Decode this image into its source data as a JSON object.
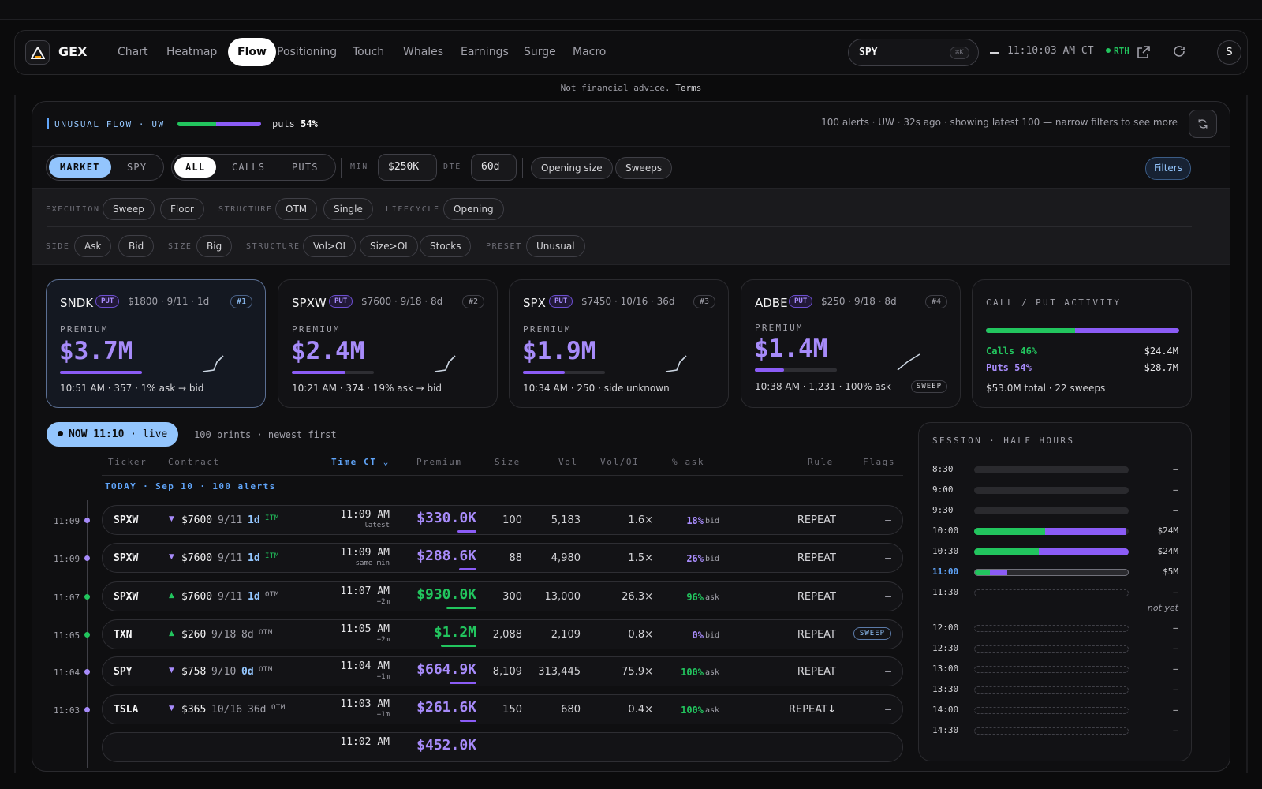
{
  "nav": {
    "brand": "GEX",
    "tabs": [
      "Chart",
      "Heatmap",
      "Flow",
      "Positioning",
      "Touch",
      "Whales",
      "Earnings",
      "Surge",
      "Macro"
    ],
    "active_tab": "Flow",
    "search_value": "SPY",
    "search_shortcut": "⌘K",
    "clock": "11:10:03 AM CT",
    "session_badge": "RTH",
    "avatar": "S"
  },
  "disclaimer": {
    "text": "Not financial advice.",
    "link": "Terms"
  },
  "panel": {
    "title": "UNUSUAL FLOW · UW",
    "puts_label": "puts",
    "puts_pct": "54%",
    "meta": "100 alerts · UW · 32s ago · showing latest 100 — narrow filters to see more"
  },
  "controls": {
    "scope": [
      "MARKET",
      "SPY"
    ],
    "scope_active": "MARKET",
    "side": [
      "ALL",
      "CALLS",
      "PUTS"
    ],
    "side_active": "ALL",
    "min_label": "MIN",
    "min_value": "$250K",
    "dte_label": "DTE",
    "dte_value": "60d",
    "toggles": [
      "Opening size",
      "Sweeps"
    ],
    "filters_button": "Filters"
  },
  "filters": {
    "row1": [
      {
        "label": "EXECUTION",
        "pills": [
          "Sweep",
          "Floor"
        ]
      },
      {
        "label": "STRUCTURE",
        "pills": [
          "OTM",
          "Single"
        ]
      },
      {
        "label": "LIFECYCLE",
        "pills": [
          "Opening"
        ]
      }
    ],
    "row2": [
      {
        "label": "SIDE",
        "pills": [
          "Ask",
          "Bid"
        ]
      },
      {
        "label": "SIZE",
        "pills": [
          "Big"
        ]
      },
      {
        "label": "STRUCTURE",
        "pills": [
          "Vol>OI",
          "Size>OI",
          "Stocks"
        ]
      },
      {
        "label": "PRESET",
        "pills": [
          "Unusual"
        ]
      }
    ]
  },
  "top_cards": [
    {
      "ticker": "SNDK",
      "type": "PUT",
      "contract": "$1800 · 9/11 · 1d",
      "rank": "#1",
      "premium_label": "PREMIUM",
      "premium": "$3.7M",
      "bar": 1.0,
      "footer": "10:51 AM · 357 · 1% ask → bid",
      "flag": ""
    },
    {
      "ticker": "SPXW",
      "type": "PUT",
      "contract": "$7600 · 9/18 · 8d",
      "rank": "#2",
      "premium_label": "PREMIUM",
      "premium": "$2.4M",
      "bar": 0.65,
      "footer": "10:21 AM · 374 · 19% ask → bid",
      "flag": ""
    },
    {
      "ticker": "SPX",
      "type": "PUT",
      "contract": "$7450 · 10/16 · 36d",
      "rank": "#3",
      "premium_label": "PREMIUM",
      "premium": "$1.9M",
      "bar": 0.51,
      "footer": "10:34 AM · 250 · side unknown",
      "flag": ""
    },
    {
      "ticker": "ADBE",
      "type": "PUT",
      "contract": "$250 · 9/18 · 8d",
      "rank": "#4",
      "premium_label": "PREMIUM",
      "premium": "$1.4M",
      "bar": 0.36,
      "footer": "10:38 AM · 1,231 · 100% ask",
      "flag": "SWEEP"
    }
  ],
  "call_put": {
    "title": "CALL / PUT ACTIVITY",
    "calls_label": "Calls 46%",
    "calls_value": "$24.4M",
    "puts_label": "Puts 54%",
    "puts_value": "$28.7M",
    "calls_fraction": 0.46,
    "footer": "$53.0M total · 22 sweeps",
    "colors": {
      "calls": "#22c55e",
      "puts": "#8b5cf6"
    }
  },
  "feed": {
    "now_label": "NOW 11:10",
    "live_label": "· live",
    "summary": "100 prints · newest first",
    "columns": [
      "Ticker",
      "Contract",
      "Time CT",
      "Premium",
      "Size",
      "Vol",
      "Vol/OI",
      "% ask",
      "Rule",
      "Flags"
    ],
    "group": "TODAY · Sep 10 · 100 alerts",
    "rows": [
      {
        "tl": "11:09",
        "dot": "put",
        "ticker": "SPXW",
        "dir": "down",
        "strike": "$7600",
        "exp": "9/11",
        "dte": "1d",
        "money": "ITM",
        "time": "11:09 AM",
        "sub": "latest",
        "premium": "$330.0K",
        "pbar": 0.35,
        "size": "100",
        "vol": "5,183",
        "voi": "1.6×",
        "pct": "18%",
        "side": "bid",
        "rule": "REPEAT",
        "flag": "–"
      },
      {
        "tl": "11:09",
        "dot": "put",
        "ticker": "SPXW",
        "dir": "down",
        "strike": "$7600",
        "exp": "9/11",
        "dte": "1d",
        "money": "ITM",
        "time": "11:09 AM",
        "sub": "same min",
        "premium": "$288.6K",
        "pbar": 0.31,
        "size": "88",
        "vol": "4,980",
        "voi": "1.5×",
        "pct": "26%",
        "side": "bid",
        "rule": "REPEAT",
        "flag": "–"
      },
      {
        "tl": "11:07",
        "dot": "call",
        "ticker": "SPXW",
        "dir": "up",
        "strike": "$7600",
        "exp": "9/11",
        "dte": "1d",
        "money": "OTM",
        "time": "11:07 AM",
        "sub": "+2m",
        "premium": "$930.0K",
        "pbar": 0.55,
        "size": "300",
        "vol": "13,000",
        "voi": "26.3×",
        "pct": "96%",
        "side": "ask",
        "rule": "REPEAT",
        "flag": "–"
      },
      {
        "tl": "11:05",
        "dot": "call",
        "ticker": "TXN",
        "dir": "up",
        "strike": "$260",
        "exp": "9/18",
        "dte": "8d",
        "money": "OTM",
        "time": "11:05 AM",
        "sub": "+2m",
        "premium": "$1.2M",
        "pbar": 0.65,
        "size": "2,088",
        "vol": "2,109",
        "voi": "0.8×",
        "pct": "0%",
        "side": "bid",
        "rule": "REPEAT",
        "flag": "SWEEP"
      },
      {
        "tl": "11:04",
        "dot": "put",
        "ticker": "SPY",
        "dir": "down",
        "strike": "$758",
        "exp": "9/10",
        "dte": "0d",
        "money": "OTM",
        "time": "11:04 AM",
        "sub": "+1m",
        "premium": "$664.9K",
        "pbar": 0.48,
        "size": "8,109",
        "vol": "313,445",
        "voi": "75.9×",
        "pct": "100%",
        "side": "ask",
        "rule": "REPEAT",
        "flag": "–"
      },
      {
        "tl": "11:03",
        "dot": "put",
        "ticker": "TSLA",
        "dir": "down",
        "strike": "$365",
        "exp": "10/16",
        "dte": "36d",
        "money": "OTM",
        "time": "11:03 AM",
        "sub": "+1m",
        "premium": "$261.6K",
        "pbar": 0.3,
        "size": "150",
        "vol": "680",
        "voi": "0.4×",
        "pct": "100%",
        "side": "ask",
        "rule": "REPEAT↓",
        "flag": "–"
      },
      {
        "tl": "",
        "dot": "",
        "ticker": "",
        "dir": "",
        "strike": "",
        "exp": "",
        "dte": "",
        "money": "",
        "time": "11:02 AM",
        "sub": "",
        "premium": "$452.0K",
        "pbar": 0,
        "size": "",
        "vol": "",
        "voi": "",
        "pct": "",
        "side": "",
        "rule": "",
        "flag": ""
      }
    ]
  },
  "session": {
    "title": "SESSION · HALF HOURS",
    "not_yet": "not yet",
    "slots": [
      {
        "t": "8:30",
        "state": "past",
        "calls": 0,
        "puts": 0,
        "v": "–"
      },
      {
        "t": "9:00",
        "state": "past",
        "calls": 0,
        "puts": 0,
        "v": "–"
      },
      {
        "t": "9:30",
        "state": "past",
        "calls": 0,
        "puts": 0,
        "v": "–"
      },
      {
        "t": "10:00",
        "state": "past",
        "calls": 0.46,
        "puts": 0.52,
        "v": "$24M"
      },
      {
        "t": "10:30",
        "state": "past",
        "calls": 0.42,
        "puts": 0.58,
        "v": "$24M"
      },
      {
        "t": "11:00",
        "state": "current",
        "calls": 0.1,
        "puts": 0.11,
        "v": "$5M"
      },
      {
        "t": "11:30",
        "state": "future",
        "calls": 0,
        "puts": 0,
        "v": "–"
      },
      {
        "t": "12:00",
        "state": "future",
        "calls": 0,
        "puts": 0,
        "v": "–"
      },
      {
        "t": "12:30",
        "state": "future",
        "calls": 0,
        "puts": 0,
        "v": "–"
      },
      {
        "t": "13:00",
        "state": "future",
        "calls": 0,
        "puts": 0,
        "v": "–"
      },
      {
        "t": "13:30",
        "state": "future",
        "calls": 0,
        "puts": 0,
        "v": "–"
      },
      {
        "t": "14:00",
        "state": "future",
        "calls": 0,
        "puts": 0,
        "v": "–"
      },
      {
        "t": "14:30",
        "state": "future",
        "calls": 0,
        "puts": 0,
        "v": "–"
      }
    ]
  },
  "colors": {
    "call": "#22c55e",
    "put": "#a78bfa",
    "accent": "#93c5fd"
  }
}
